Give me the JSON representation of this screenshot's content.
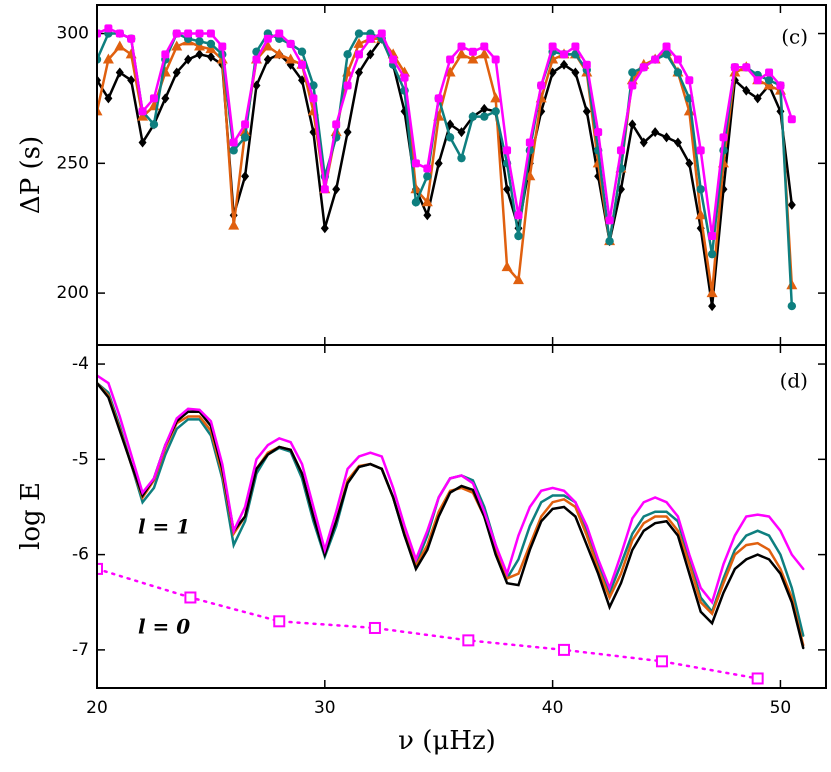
{
  "chart_data": [
    {
      "type": "line",
      "ylabel": "ΔP  (s)",
      "annotations": [
        "(c)"
      ],
      "xlim": [
        20,
        52
      ],
      "xticks": [
        20,
        30,
        40,
        50
      ],
      "ylim": [
        180,
        311
      ],
      "yticks": [
        200,
        250,
        300
      ],
      "x": [
        20,
        20.5,
        21,
        21.5,
        22,
        22.5,
        23,
        23.5,
        24,
        24.5,
        25,
        25.5,
        26,
        26.5,
        27,
        27.5,
        28,
        28.5,
        29,
        29.5,
        30,
        30.5,
        31,
        31.5,
        32,
        32.5,
        33,
        33.5,
        34,
        34.5,
        35,
        35.5,
        36,
        36.5,
        37,
        37.5,
        38,
        38.5,
        39,
        39.5,
        40,
        40.5,
        41,
        41.5,
        42,
        42.5,
        43,
        43.5,
        44,
        44.5,
        45,
        45.5,
        46,
        46.5,
        47,
        47.5,
        48,
        48.5,
        49,
        49.5,
        50,
        50.5
      ],
      "series": [
        {
          "color": "#000000",
          "marker": "diamond",
          "values": [
            282,
            275,
            285,
            282,
            258,
            265,
            275,
            285,
            290,
            292,
            291,
            288,
            230,
            245,
            280,
            290,
            292,
            288,
            282,
            262,
            225,
            240,
            262,
            285,
            292,
            298,
            288,
            270,
            240,
            230,
            250,
            265,
            262,
            268,
            271,
            270,
            240,
            225,
            250,
            270,
            285,
            288,
            285,
            270,
            245,
            220,
            240,
            265,
            258,
            262,
            260,
            258,
            250,
            225,
            195,
            240,
            282,
            278,
            275,
            280,
            270,
            234
          ]
        },
        {
          "color": "#e0600f",
          "marker": "triangle",
          "values": [
            270,
            290,
            295,
            292,
            268,
            272,
            285,
            295,
            297,
            295,
            294,
            290,
            226,
            262,
            290,
            295,
            292,
            290,
            288,
            270,
            240,
            262,
            285,
            296,
            298,
            298,
            292,
            285,
            240,
            235,
            268,
            285,
            292,
            290,
            292,
            275,
            210,
            205,
            245,
            275,
            290,
            292,
            292,
            285,
            250,
            220,
            248,
            282,
            288,
            290,
            293,
            285,
            270,
            230,
            200,
            250,
            285,
            287,
            282,
            280,
            278,
            203
          ]
        },
        {
          "color": "#0e7f7f",
          "marker": "circle",
          "values": [
            290,
            300,
            300,
            298,
            270,
            265,
            290,
            300,
            298,
            297,
            296,
            292,
            255,
            260,
            293,
            300,
            298,
            296,
            293,
            280,
            245,
            260,
            292,
            300,
            300,
            298,
            288,
            278,
            235,
            245,
            275,
            260,
            252,
            268,
            268,
            270,
            250,
            222,
            255,
            280,
            293,
            292,
            292,
            286,
            255,
            220,
            248,
            285,
            287,
            290,
            292,
            285,
            275,
            240,
            215,
            255,
            287,
            287,
            284,
            282,
            280,
            195
          ]
        },
        {
          "color": "#ff00ff",
          "marker": "square",
          "values": [
            300,
            302,
            300,
            298,
            270,
            275,
            292,
            300,
            300,
            300,
            300,
            295,
            258,
            265,
            290,
            298,
            300,
            296,
            288,
            275,
            240,
            265,
            280,
            292,
            298,
            300,
            290,
            283,
            250,
            248,
            275,
            290,
            295,
            293,
            295,
            290,
            255,
            230,
            258,
            280,
            295,
            292,
            295,
            288,
            262,
            228,
            255,
            280,
            287,
            290,
            295,
            290,
            282,
            255,
            222,
            260,
            287,
            287,
            282,
            285,
            280,
            267
          ]
        }
      ]
    },
    {
      "type": "line",
      "xlabel": "ν (μHz)",
      "ylabel": "log E",
      "annotations": [
        "(d)",
        "l = 1",
        "l = 0"
      ],
      "xlim": [
        20,
        52
      ],
      "xticks": [
        20,
        30,
        40,
        50
      ],
      "ylim": [
        -7.4,
        -3.8
      ],
      "yticks": [
        -4,
        -5,
        -6,
        -7
      ],
      "x": [
        20,
        20.5,
        21,
        21.5,
        22,
        22.5,
        23,
        23.5,
        24,
        24.5,
        25,
        25.5,
        26,
        26.5,
        27,
        27.5,
        28,
        28.5,
        29,
        29.5,
        30,
        30.5,
        31,
        31.5,
        32,
        32.5,
        33,
        33.5,
        34,
        34.5,
        35,
        35.5,
        36,
        36.5,
        37,
        37.5,
        38,
        38.5,
        39,
        39.5,
        40,
        40.5,
        41,
        41.5,
        42,
        42.5,
        43,
        43.5,
        44,
        44.5,
        45,
        45.5,
        46,
        46.5,
        47,
        47.5,
        48,
        48.5,
        49,
        49.5,
        50,
        50.5,
        51
      ],
      "series": [
        {
          "color": "#0e7f7f",
          "values": [
            -4.2,
            -4.3,
            -4.65,
            -5.05,
            -5.45,
            -5.3,
            -4.95,
            -4.68,
            -4.58,
            -4.58,
            -4.75,
            -5.2,
            -5.9,
            -5.65,
            -5.15,
            -4.95,
            -4.88,
            -4.92,
            -5.2,
            -5.65,
            -6.02,
            -5.7,
            -5.25,
            -5.08,
            -5.05,
            -5.1,
            -5.4,
            -5.8,
            -6.1,
            -5.8,
            -5.4,
            -5.2,
            -5.17,
            -5.22,
            -5.5,
            -5.9,
            -6.25,
            -6.05,
            -5.7,
            -5.45,
            -5.38,
            -5.38,
            -5.45,
            -5.75,
            -6.1,
            -6.4,
            -6.1,
            -5.78,
            -5.6,
            -5.55,
            -5.55,
            -5.65,
            -6.05,
            -6.45,
            -6.6,
            -6.25,
            -5.95,
            -5.8,
            -5.75,
            -5.8,
            -6.0,
            -6.35,
            -6.85
          ]
        },
        {
          "color": "#e0600f",
          "values": [
            -4.2,
            -4.33,
            -4.68,
            -5.05,
            -5.4,
            -5.22,
            -4.88,
            -4.62,
            -4.55,
            -4.55,
            -4.7,
            -5.15,
            -5.78,
            -5.6,
            -5.1,
            -4.93,
            -4.87,
            -4.9,
            -5.15,
            -5.6,
            -5.98,
            -5.65,
            -5.22,
            -5.07,
            -5.05,
            -5.1,
            -5.4,
            -5.78,
            -6.12,
            -5.9,
            -5.55,
            -5.33,
            -5.3,
            -5.35,
            -5.6,
            -5.95,
            -6.25,
            -6.2,
            -5.9,
            -5.6,
            -5.45,
            -5.42,
            -5.5,
            -5.8,
            -6.15,
            -6.45,
            -6.2,
            -5.85,
            -5.67,
            -5.6,
            -5.6,
            -5.75,
            -6.1,
            -6.5,
            -6.62,
            -6.3,
            -6.0,
            -5.9,
            -5.88,
            -5.95,
            -6.15,
            -6.45,
            -6.95
          ]
        },
        {
          "color": "#000000",
          "values": [
            -4.2,
            -4.35,
            -4.7,
            -5.05,
            -5.38,
            -5.2,
            -4.85,
            -4.6,
            -4.5,
            -4.5,
            -4.65,
            -5.1,
            -5.75,
            -5.6,
            -5.1,
            -4.95,
            -4.87,
            -4.9,
            -5.15,
            -5.6,
            -6.0,
            -5.65,
            -5.25,
            -5.08,
            -5.05,
            -5.1,
            -5.4,
            -5.8,
            -6.15,
            -5.95,
            -5.6,
            -5.35,
            -5.28,
            -5.32,
            -5.6,
            -6.0,
            -6.3,
            -6.32,
            -5.95,
            -5.65,
            -5.52,
            -5.5,
            -5.6,
            -5.9,
            -6.2,
            -6.55,
            -6.3,
            -5.95,
            -5.75,
            -5.67,
            -5.65,
            -5.8,
            -6.2,
            -6.6,
            -6.72,
            -6.4,
            -6.15,
            -6.05,
            -6.0,
            -6.05,
            -6.2,
            -6.5,
            -6.98
          ]
        },
        {
          "color": "#ff00ff",
          "values": [
            -4.12,
            -4.2,
            -4.55,
            -4.95,
            -5.35,
            -5.2,
            -4.85,
            -4.57,
            -4.47,
            -4.48,
            -4.6,
            -5.05,
            -5.75,
            -5.5,
            -5.0,
            -4.85,
            -4.78,
            -4.82,
            -5.05,
            -5.5,
            -5.95,
            -5.55,
            -5.1,
            -4.97,
            -4.93,
            -4.97,
            -5.3,
            -5.7,
            -6.05,
            -5.75,
            -5.4,
            -5.2,
            -5.17,
            -5.25,
            -5.55,
            -5.9,
            -6.2,
            -5.8,
            -5.5,
            -5.33,
            -5.3,
            -5.33,
            -5.45,
            -5.7,
            -6.05,
            -6.35,
            -6.0,
            -5.62,
            -5.45,
            -5.4,
            -5.45,
            -5.6,
            -6.0,
            -6.35,
            -6.5,
            -6.1,
            -5.8,
            -5.6,
            -5.58,
            -5.6,
            -5.75,
            -6.0,
            -6.15
          ]
        },
        {
          "color": "#ff00ff",
          "linestyle": "dotted",
          "marker": "open-square",
          "x": [
            20,
            24.1,
            28,
            32.2,
            36.3,
            40.5,
            44.8,
            49
          ],
          "values": [
            -6.15,
            -6.45,
            -6.7,
            -6.77,
            -6.9,
            -7.0,
            -7.12,
            -7.3
          ]
        }
      ]
    }
  ]
}
